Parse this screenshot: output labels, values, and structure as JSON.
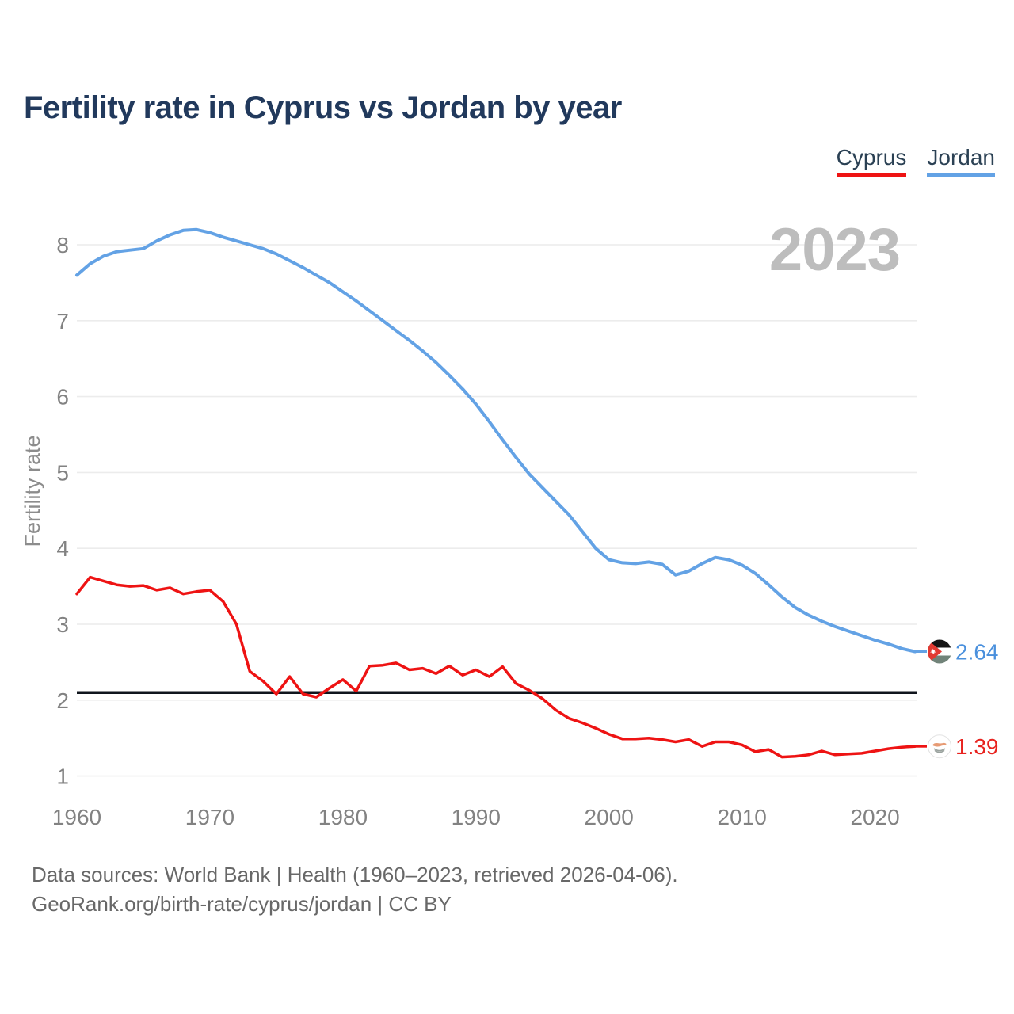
{
  "title": "Fertility rate in Cyprus vs Jordan by year",
  "watermark": "2023",
  "legend": [
    {
      "label": "Cyprus",
      "color": "#ee1313"
    },
    {
      "label": "Jordan",
      "color": "#63a2e5"
    }
  ],
  "footer": {
    "line1": "Data sources: World Bank | Health (1960–2023, retrieved 2026-04-06).",
    "line2": "GeoRank.org/birth-rate/cyprus/jordan | CC BY"
  },
  "chart_data": {
    "type": "line",
    "title": "Fertility rate in Cyprus vs Jordan by year",
    "xlabel": "",
    "ylabel": "Fertility rate",
    "grid": true,
    "legend_position": "top-right",
    "ylim": [
      0.95,
      8.55
    ],
    "yticks": [
      1,
      2,
      3,
      4,
      5,
      6,
      7,
      8
    ],
    "xticks": [
      1960,
      1970,
      1980,
      1990,
      2000,
      2010,
      2020
    ],
    "reference_line": 2.1,
    "x": [
      1960,
      1961,
      1962,
      1963,
      1964,
      1965,
      1966,
      1967,
      1968,
      1969,
      1970,
      1971,
      1972,
      1973,
      1974,
      1975,
      1976,
      1977,
      1978,
      1979,
      1980,
      1981,
      1982,
      1983,
      1984,
      1985,
      1986,
      1987,
      1988,
      1989,
      1990,
      1991,
      1992,
      1993,
      1994,
      1995,
      1996,
      1997,
      1998,
      1999,
      2000,
      2001,
      2002,
      2003,
      2004,
      2005,
      2006,
      2007,
      2008,
      2009,
      2010,
      2011,
      2012,
      2013,
      2014,
      2015,
      2016,
      2017,
      2018,
      2019,
      2020,
      2021,
      2022,
      2023
    ],
    "series": [
      {
        "name": "Cyprus",
        "color": "#ee1313",
        "label_color": "#e8231f",
        "end_label": "1.39",
        "values": [
          3.4,
          3.62,
          3.57,
          3.52,
          3.5,
          3.51,
          3.45,
          3.48,
          3.4,
          3.43,
          3.45,
          3.3,
          3.0,
          2.38,
          2.25,
          2.08,
          2.31,
          2.08,
          2.04,
          2.16,
          2.27,
          2.12,
          2.45,
          2.46,
          2.49,
          2.4,
          2.42,
          2.35,
          2.45,
          2.33,
          2.4,
          2.31,
          2.44,
          2.22,
          2.13,
          2.02,
          1.87,
          1.76,
          1.7,
          1.63,
          1.55,
          1.49,
          1.49,
          1.5,
          1.48,
          1.45,
          1.48,
          1.39,
          1.45,
          1.45,
          1.41,
          1.32,
          1.35,
          1.25,
          1.26,
          1.28,
          1.33,
          1.28,
          1.29,
          1.3,
          1.33,
          1.36,
          1.38,
          1.39
        ]
      },
      {
        "name": "Jordan",
        "color": "#63a2e5",
        "label_color": "#4a90dd",
        "end_label": "2.64",
        "values": [
          7.6,
          7.75,
          7.85,
          7.91,
          7.93,
          7.95,
          8.05,
          8.13,
          8.19,
          8.2,
          8.16,
          8.1,
          8.05,
          8.0,
          7.95,
          7.88,
          7.79,
          7.7,
          7.6,
          7.5,
          7.38,
          7.26,
          7.13,
          7.0,
          6.87,
          6.74,
          6.6,
          6.45,
          6.28,
          6.1,
          5.9,
          5.67,
          5.43,
          5.2,
          4.98,
          4.8,
          4.62,
          4.44,
          4.22,
          4.0,
          3.85,
          3.81,
          3.8,
          3.82,
          3.79,
          3.65,
          3.7,
          3.8,
          3.88,
          3.85,
          3.78,
          3.67,
          3.52,
          3.36,
          3.22,
          3.12,
          3.04,
          2.97,
          2.91,
          2.85,
          2.79,
          2.74,
          2.68,
          2.64
        ]
      }
    ]
  }
}
